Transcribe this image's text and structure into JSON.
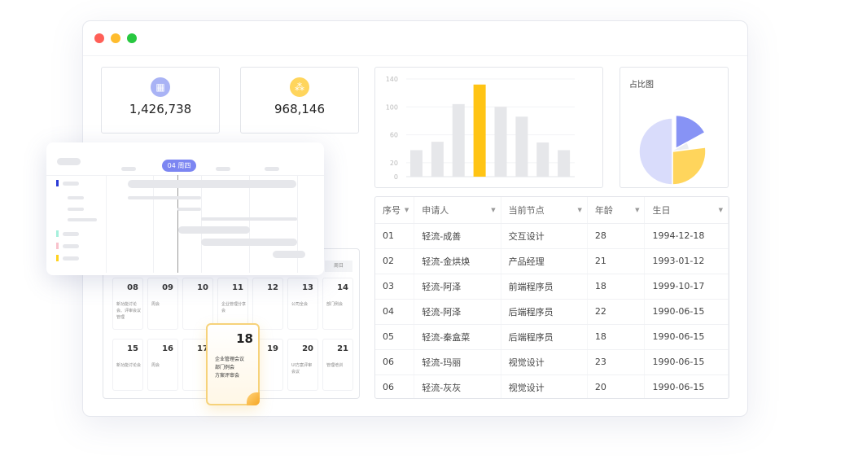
{
  "window": {
    "controls": {
      "close_color": "#ff5f57",
      "minimize_color": "#febc2e",
      "maximize_color": "#28c840"
    }
  },
  "stats": [
    {
      "icon": "grid-icon",
      "value": "1,426,738",
      "color": "#a9b3f5"
    },
    {
      "icon": "cluster-icon",
      "value": "968,146",
      "color": "#ffd55c"
    }
  ],
  "bar_chart": {
    "chart_data": {
      "type": "bar",
      "values": [
        38,
        50,
        104,
        132,
        100,
        86,
        49,
        38
      ],
      "highlight_index": 3,
      "yticks": [
        0,
        20,
        60,
        100,
        140
      ],
      "ylim": [
        0,
        140
      ],
      "grid": true,
      "colors": {
        "bar": "#e6e7ea",
        "highlight": "#ffc414"
      }
    }
  },
  "pie_chart": {
    "title": "占比图",
    "chart_data": {
      "type": "pie",
      "values": [
        17,
        6,
        27,
        50
      ],
      "colors": [
        "#8793f5",
        "#eceef2",
        "#ffd55c",
        "#d9dcfb"
      ]
    }
  },
  "table": {
    "headers": [
      "序号",
      "申请人",
      "当前节点",
      "年龄",
      "生日"
    ],
    "rows": [
      [
        "01",
        "轻流-成善",
        "交互设计",
        "28",
        "1994-12-18"
      ],
      [
        "02",
        "轻流-金烘焕",
        "产品经理",
        "21",
        "1993-01-12"
      ],
      [
        "03",
        "轻流-阿泽",
        "前端程序员",
        "18",
        "1999-10-17"
      ],
      [
        "04",
        "轻流-阿泽",
        "后端程序员",
        "22",
        "1990-06-15"
      ],
      [
        "05",
        "轻流-秦盒菜",
        "后端程序员",
        "18",
        "1990-06-15"
      ],
      [
        "06",
        "轻流-玛丽",
        "视觉设计",
        "23",
        "1990-06-15"
      ],
      [
        "06",
        "轻流-灰灰",
        "视觉设计",
        "20",
        "1990-06-15"
      ]
    ]
  },
  "gantt": {
    "today_label": "04 周四",
    "accent": "#7c86f2",
    "legend_colors": [
      "#2b3bd6",
      "#a6f0dc",
      "#f8c2cc",
      "#ffd21f"
    ]
  },
  "calendar": {
    "weekday_label": "周日",
    "weeks": [
      [
        {
          "d": "08",
          "e": "新功能讨论会、评审会议管理"
        },
        {
          "d": "09",
          "e": "周会"
        },
        {
          "d": "10",
          "e": ""
        },
        {
          "d": "11",
          "e": "企业管理分享会"
        },
        {
          "d": "12",
          "e": ""
        },
        {
          "d": "13",
          "e": "公司全会"
        },
        {
          "d": "14",
          "e": "部门例会"
        }
      ],
      [
        {
          "d": "15",
          "e": "新功能讨论会"
        },
        {
          "d": "16",
          "e": "周会"
        },
        {
          "d": "17",
          "e": ""
        },
        {
          "d": "18",
          "e": ""
        },
        {
          "d": "19",
          "e": ""
        },
        {
          "d": "20",
          "e": "UI方案评审会议"
        },
        {
          "d": "21",
          "e": "管理培训"
        }
      ]
    ],
    "note": {
      "day": "18",
      "lines": [
        "企业管理会议",
        "部门例会",
        "方案评审会"
      ]
    }
  }
}
